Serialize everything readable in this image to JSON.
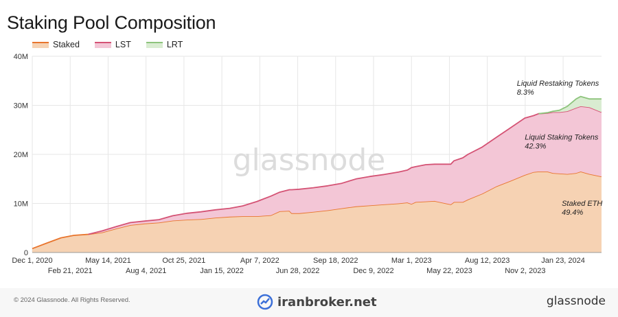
{
  "header": {
    "title": "Staking Pool Composition"
  },
  "watermark": "glassnode",
  "footer": {
    "copyright": "© 2024 Glassnode. All Rights Reserved.",
    "broker": "iranbroker.net",
    "brand": "glassnode"
  },
  "colors": {
    "staked": "#e8742c",
    "staked_fill": "#f6d2b3",
    "lst": "#d45274",
    "lst_fill": "#f3c6d6",
    "lrt": "#8dc47c",
    "lrt_fill": "#d9ecd1",
    "grid": "#e6e6e6"
  },
  "chart_data": {
    "type": "area",
    "stacked": true,
    "x_start": "2020-12-01",
    "x_end": "2024-04-15",
    "ylim": [
      0,
      40000000
    ],
    "yticks": [
      {
        "v": 0,
        "label": "0"
      },
      {
        "v": 10000000,
        "label": "10M"
      },
      {
        "v": 20000000,
        "label": "20M"
      },
      {
        "v": 30000000,
        "label": "30M"
      },
      {
        "v": 40000000,
        "label": "40M"
      }
    ],
    "xticks": [
      {
        "date": "2020-12-01",
        "label": "Dec 1, 2020",
        "row": 0
      },
      {
        "date": "2021-02-21",
        "label": "Feb 21, 2021",
        "row": 1
      },
      {
        "date": "2021-05-14",
        "label": "May 14, 2021",
        "row": 0
      },
      {
        "date": "2021-08-04",
        "label": "Aug 4, 2021",
        "row": 1
      },
      {
        "date": "2021-10-25",
        "label": "Oct 25, 2021",
        "row": 0
      },
      {
        "date": "2022-01-15",
        "label": "Jan 15, 2022",
        "row": 1
      },
      {
        "date": "2022-04-07",
        "label": "Apr 7, 2022",
        "row": 0
      },
      {
        "date": "2022-06-28",
        "label": "Jun 28, 2022",
        "row": 1
      },
      {
        "date": "2022-09-18",
        "label": "Sep 18, 2022",
        "row": 0
      },
      {
        "date": "2022-12-09",
        "label": "Dec 9, 2022",
        "row": 1
      },
      {
        "date": "2023-03-01",
        "label": "Mar 1, 2023",
        "row": 0
      },
      {
        "date": "2023-05-22",
        "label": "May 22, 2023",
        "row": 1
      },
      {
        "date": "2023-08-12",
        "label": "Aug 12, 2023",
        "row": 0
      },
      {
        "date": "2023-11-02",
        "label": "Nov 2, 2023",
        "row": 1
      },
      {
        "date": "2024-01-23",
        "label": "Jan 23, 2024",
        "row": 0
      }
    ],
    "series": [
      {
        "name": "Staked",
        "key": "staked",
        "points": [
          [
            "2020-12-01",
            800000
          ],
          [
            "2021-01-01",
            1900000
          ],
          [
            "2021-02-01",
            3000000
          ],
          [
            "2021-03-01",
            3500000
          ],
          [
            "2021-04-01",
            3700000
          ],
          [
            "2021-05-01",
            4100000
          ],
          [
            "2021-06-01",
            4900000
          ],
          [
            "2021-07-01",
            5600000
          ],
          [
            "2021-08-01",
            5900000
          ],
          [
            "2021-09-01",
            6100000
          ],
          [
            "2021-10-01",
            6500000
          ],
          [
            "2021-11-01",
            6700000
          ],
          [
            "2021-12-01",
            6800000
          ],
          [
            "2022-01-01",
            7100000
          ],
          [
            "2022-02-01",
            7300000
          ],
          [
            "2022-03-01",
            7400000
          ],
          [
            "2022-04-01",
            7400000
          ],
          [
            "2022-05-01",
            7600000
          ],
          [
            "2022-05-20",
            8400000
          ],
          [
            "2022-06-10",
            8500000
          ],
          [
            "2022-06-15",
            8000000
          ],
          [
            "2022-07-01",
            8000000
          ],
          [
            "2022-08-01",
            8300000
          ],
          [
            "2022-09-01",
            8600000
          ],
          [
            "2022-10-01",
            9000000
          ],
          [
            "2022-11-01",
            9400000
          ],
          [
            "2022-12-01",
            9600000
          ],
          [
            "2023-01-01",
            9800000
          ],
          [
            "2023-02-01",
            10000000
          ],
          [
            "2023-02-20",
            10200000
          ],
          [
            "2023-03-01",
            9900000
          ],
          [
            "2023-03-10",
            10300000
          ],
          [
            "2023-04-01",
            10400000
          ],
          [
            "2023-04-20",
            10500000
          ],
          [
            "2023-05-15",
            10000000
          ],
          [
            "2023-05-25",
            9800000
          ],
          [
            "2023-06-01",
            10300000
          ],
          [
            "2023-06-20",
            10300000
          ],
          [
            "2023-07-01",
            10800000
          ],
          [
            "2023-08-01",
            12000000
          ],
          [
            "2023-09-01",
            13500000
          ],
          [
            "2023-10-01",
            14600000
          ],
          [
            "2023-11-01",
            15800000
          ],
          [
            "2023-11-20",
            16400000
          ],
          [
            "2023-12-01",
            16500000
          ],
          [
            "2023-12-20",
            16500000
          ],
          [
            "2024-01-01",
            16200000
          ],
          [
            "2024-01-15",
            16100000
          ],
          [
            "2024-02-01",
            16000000
          ],
          [
            "2024-02-20",
            16200000
          ],
          [
            "2024-03-01",
            16500000
          ],
          [
            "2024-03-20",
            16000000
          ],
          [
            "2024-04-15",
            15500000
          ]
        ]
      },
      {
        "name": "LST",
        "key": "lst",
        "points": [
          [
            "2020-12-01",
            0
          ],
          [
            "2021-04-01",
            0
          ],
          [
            "2021-05-01",
            300000
          ],
          [
            "2021-06-01",
            400000
          ],
          [
            "2021-07-01",
            500000
          ],
          [
            "2021-08-01",
            500000
          ],
          [
            "2021-09-01",
            600000
          ],
          [
            "2021-10-01",
            1000000
          ],
          [
            "2021-11-01",
            1300000
          ],
          [
            "2021-12-01",
            1500000
          ],
          [
            "2022-01-01",
            1600000
          ],
          [
            "2022-02-01",
            1700000
          ],
          [
            "2022-03-01",
            2100000
          ],
          [
            "2022-04-01",
            3000000
          ],
          [
            "2022-05-01",
            3900000
          ],
          [
            "2022-05-20",
            3900000
          ],
          [
            "2022-06-10",
            4300000
          ],
          [
            "2022-06-15",
            4800000
          ],
          [
            "2022-07-01",
            4900000
          ],
          [
            "2022-08-01",
            4900000
          ],
          [
            "2022-09-01",
            5000000
          ],
          [
            "2022-10-01",
            5100000
          ],
          [
            "2022-11-01",
            5600000
          ],
          [
            "2022-12-01",
            5900000
          ],
          [
            "2023-01-01",
            6100000
          ],
          [
            "2023-02-01",
            6400000
          ],
          [
            "2023-02-20",
            6600000
          ],
          [
            "2023-03-01",
            7400000
          ],
          [
            "2023-03-10",
            7200000
          ],
          [
            "2023-04-01",
            7500000
          ],
          [
            "2023-04-20",
            7500000
          ],
          [
            "2023-05-15",
            8000000
          ],
          [
            "2023-05-25",
            8200000
          ],
          [
            "2023-06-01",
            8400000
          ],
          [
            "2023-06-20",
            9000000
          ],
          [
            "2023-07-01",
            9200000
          ],
          [
            "2023-08-01",
            9500000
          ],
          [
            "2023-09-01",
            10000000
          ],
          [
            "2023-10-01",
            10800000
          ],
          [
            "2023-11-01",
            11600000
          ],
          [
            "2023-11-20",
            11500000
          ],
          [
            "2023-12-01",
            11800000
          ],
          [
            "2023-12-20",
            11900000
          ],
          [
            "2024-01-01",
            12400000
          ],
          [
            "2024-01-15",
            12500000
          ],
          [
            "2024-02-01",
            12800000
          ],
          [
            "2024-02-20",
            13300000
          ],
          [
            "2024-03-01",
            13300000
          ],
          [
            "2024-03-20",
            13600000
          ],
          [
            "2024-04-15",
            13100000
          ]
        ]
      },
      {
        "name": "LRT",
        "key": "lrt",
        "points": [
          [
            "2020-12-01",
            0
          ],
          [
            "2023-12-01",
            0
          ],
          [
            "2023-12-20",
            100000
          ],
          [
            "2024-01-01",
            200000
          ],
          [
            "2024-01-15",
            400000
          ],
          [
            "2024-02-01",
            1000000
          ],
          [
            "2024-02-20",
            1800000
          ],
          [
            "2024-03-01",
            2000000
          ],
          [
            "2024-03-20",
            1700000
          ],
          [
            "2024-04-15",
            2700000
          ]
        ]
      }
    ],
    "annotations": [
      {
        "line1": "Liquid Restaking Tokens",
        "line2": "8.3%",
        "date": "2023-10-15",
        "y": 34000000
      },
      {
        "line1": "Liquid Staking Tokens",
        "line2": "42.3%",
        "date": "2023-11-01",
        "y": 23000000
      },
      {
        "line1": "Staked ETH",
        "line2": "49.4%",
        "date": "2024-01-20",
        "y": 9500000
      }
    ]
  }
}
